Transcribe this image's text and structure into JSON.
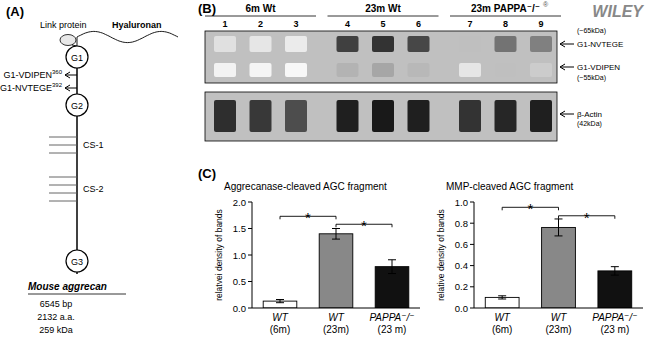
{
  "chart_data": [
    {
      "type": "diagram",
      "title": "(A)",
      "annotations": [
        "Link protein",
        "Hyaluronan",
        "G1",
        "G2",
        "G3",
        "G1-VDIPEN",
        "360",
        "G1-NVTEGE",
        "392",
        "CS-1",
        "CS-2",
        "Mouse aggrecan",
        "6545 bp",
        "2132 a.a.",
        "259 kDa"
      ]
    },
    {
      "type": "heatmap",
      "title": "(B)",
      "categories": [
        "1",
        "2",
        "3",
        "4",
        "5",
        "6",
        "7",
        "8",
        "9"
      ],
      "series": [
        {
          "name": "G1-NVTEGE",
          "values": [
            0.12,
            0.1,
            0.08,
            0.75,
            0.8,
            0.72,
            0.25,
            0.55,
            0.5
          ]
        },
        {
          "name": "G1-VDIPEN",
          "values": [
            0.05,
            0.04,
            0.03,
            0.3,
            0.35,
            0.28,
            0.1,
            0.25,
            0.2
          ]
        },
        {
          "name": "β-Actin",
          "values": [
            0.82,
            0.78,
            0.7,
            0.88,
            0.9,
            0.88,
            0.8,
            0.85,
            0.88
          ]
        }
      ],
      "annotations": [
        "6m Wt",
        "23m Wt",
        "23m PAPPA⁻/⁻",
        "®",
        "WILEY",
        "(~65kDa)",
        "(~55kDa)",
        "(42kDa)"
      ]
    },
    {
      "type": "bar",
      "title": "Aggrecanase-cleaved AGC fragment",
      "ylabel": "relatvei density of bands",
      "categories": [
        "WT\n(6m)",
        "WT\n(23m)",
        "PAPPA⁻/⁻\n(23 m)"
      ],
      "values": [
        0.13,
        1.4,
        0.78
      ],
      "errors": [
        0.03,
        0.1,
        0.13
      ],
      "colors": [
        "white",
        "#888888",
        "#111111"
      ],
      "ylim": [
        0,
        2.0
      ],
      "yticks": [
        {
          "value": 0.0,
          "label": "0.0"
        },
        0.5,
        {
          "value": 1.0,
          "label": "1.0"
        },
        1.5,
        {
          "value": 2.0,
          "label": "2.0"
        }
      ],
      "annotations": [
        {
          "text": "(C)"
        },
        {
          "text": "*",
          "y": 1.73,
          "between": [
            0,
            1
          ]
        },
        {
          "text": "*",
          "y": 1.58,
          "between": [
            1,
            2
          ]
        }
      ]
    },
    {
      "type": "bar",
      "title": "MMP-cleaved AGC fragment",
      "ylabel": "relative density of bands",
      "categories": [
        "WT\n(6m)",
        "WT\n(23m)",
        "PAPPA⁻/⁻\n(23 m)"
      ],
      "values": [
        0.1,
        0.76,
        0.35
      ],
      "errors": [
        0.015,
        0.08,
        0.04
      ],
      "colors": [
        "white",
        "#888888",
        "#111111"
      ],
      "ylim": [
        0,
        1.0
      ],
      "yticks": [
        {
          "value": 0.0,
          "label": "0.0"
        },
        0.2,
        0.4,
        0.6,
        0.8,
        {
          "value": 1.0,
          "label": "1.0"
        }
      ],
      "annotations": [
        {
          "text": "*",
          "y": 0.95,
          "between": [
            0,
            1
          ]
        },
        {
          "text": "*",
          "y": 0.87,
          "between": [
            1,
            2
          ]
        }
      ]
    }
  ]
}
